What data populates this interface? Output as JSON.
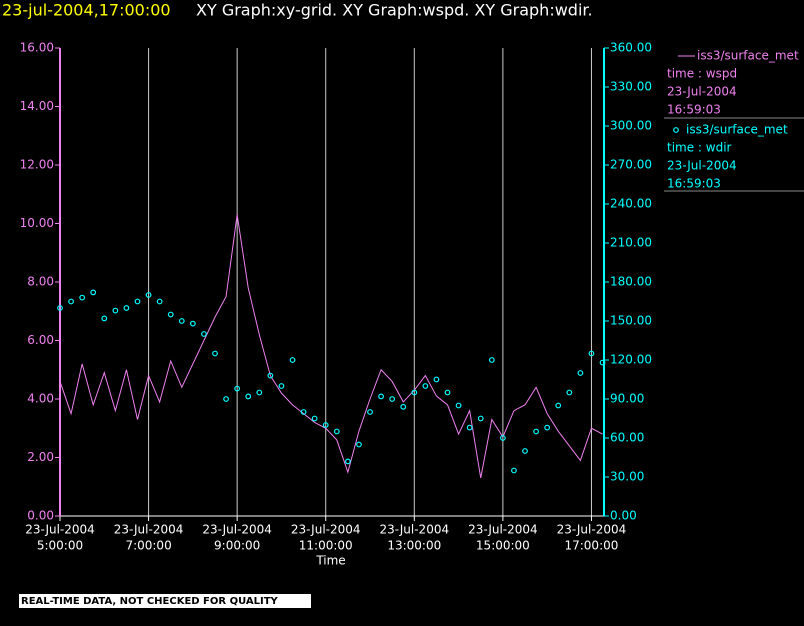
{
  "chart_data": {
    "type": "line",
    "title": [
      "23-jul-2004,17:00:00",
      "XY Graph:xy-grid.  XY Graph:wspd.  XY Graph:wdir."
    ],
    "xlabel": "Time",
    "footer": "REAL-TIME DATA, NOT CHECKED FOR QUALITY",
    "grid": true,
    "x": [
      "2004-07-23T05:00",
      "2004-07-23T05:15",
      "2004-07-23T05:30",
      "2004-07-23T05:45",
      "2004-07-23T06:00",
      "2004-07-23T06:15",
      "2004-07-23T06:30",
      "2004-07-23T06:45",
      "2004-07-23T07:00",
      "2004-07-23T07:15",
      "2004-07-23T07:30",
      "2004-07-23T07:45",
      "2004-07-23T08:00",
      "2004-07-23T08:15",
      "2004-07-23T08:30",
      "2004-07-23T08:45",
      "2004-07-23T09:00",
      "2004-07-23T09:15",
      "2004-07-23T09:30",
      "2004-07-23T09:45",
      "2004-07-23T10:00",
      "2004-07-23T10:15",
      "2004-07-23T10:30",
      "2004-07-23T10:45",
      "2004-07-23T11:00",
      "2004-07-23T11:15",
      "2004-07-23T11:30",
      "2004-07-23T11:45",
      "2004-07-23T12:00",
      "2004-07-23T12:15",
      "2004-07-23T12:30",
      "2004-07-23T12:45",
      "2004-07-23T13:00",
      "2004-07-23T13:15",
      "2004-07-23T13:30",
      "2004-07-23T13:45",
      "2004-07-23T14:00",
      "2004-07-23T14:15",
      "2004-07-23T14:30",
      "2004-07-23T14:45",
      "2004-07-23T15:00",
      "2004-07-23T15:15",
      "2004-07-23T15:30",
      "2004-07-23T15:45",
      "2004-07-23T16:00",
      "2004-07-23T16:15",
      "2004-07-23T16:30",
      "2004-07-23T16:45",
      "2004-07-23T17:00",
      "2004-07-23T17:15"
    ],
    "xlim": [
      "2004-07-23T05:00",
      "2004-07-23T17:17"
    ],
    "xticks": [
      {
        "value": "2004-07-23T05:00",
        "label": [
          "23-Jul-2004",
          "5:00:00"
        ]
      },
      {
        "value": "2004-07-23T07:00",
        "label": [
          "23-Jul-2004",
          "7:00:00"
        ]
      },
      {
        "value": "2004-07-23T09:00",
        "label": [
          "23-Jul-2004",
          "9:00:00"
        ]
      },
      {
        "value": "2004-07-23T11:00",
        "label": [
          "23-Jul-2004",
          "11:00:00"
        ]
      },
      {
        "value": "2004-07-23T13:00",
        "label": [
          "23-Jul-2004",
          "13:00:00"
        ]
      },
      {
        "value": "2004-07-23T15:00",
        "label": [
          "23-Jul-2004",
          "15:00:00"
        ]
      },
      {
        "value": "2004-07-23T17:00",
        "label": [
          "23-Jul-2004",
          "17:00:00"
        ]
      }
    ],
    "ylim": [
      0,
      16
    ],
    "yticks": [
      {
        "value": 0,
        "label": "0.00"
      },
      {
        "value": 2,
        "label": "2.00"
      },
      {
        "value": 4,
        "label": "4.00"
      },
      {
        "value": 6,
        "label": "6.00"
      },
      {
        "value": 8,
        "label": "8.00"
      },
      {
        "value": 10,
        "label": "10.00"
      },
      {
        "value": 12,
        "label": "12.00"
      },
      {
        "value": 14,
        "label": "14.00"
      },
      {
        "value": 16,
        "label": "16.00"
      }
    ],
    "y2lim": [
      0,
      360
    ],
    "y2ticks": [
      {
        "value": 0,
        "label": "0.00"
      },
      {
        "value": 30,
        "label": "30.00"
      },
      {
        "value": 60,
        "label": "60.00"
      },
      {
        "value": 90,
        "label": "90.00"
      },
      {
        "value": 120,
        "label": "120.00"
      },
      {
        "value": 150,
        "label": "150.00"
      },
      {
        "value": 180,
        "label": "180.00"
      },
      {
        "value": 210,
        "label": "210.00"
      },
      {
        "value": 240,
        "label": "240.00"
      },
      {
        "value": 270,
        "label": "270.00"
      },
      {
        "value": 300,
        "label": "300.00"
      },
      {
        "value": 330,
        "label": "330.00"
      },
      {
        "value": 360,
        "label": "360.00"
      }
    ],
    "series": [
      {
        "name": "iss3/surface_met",
        "legend_lines": [
          "time : wspd",
          "23-Jul-2004",
          "16:59:03"
        ],
        "color": "#ee82ee",
        "style": "line",
        "values": [
          4.6,
          3.5,
          5.2,
          3.8,
          4.9,
          3.6,
          5.0,
          3.3,
          4.8,
          3.9,
          5.3,
          4.4,
          5.2,
          6.0,
          6.8,
          7.5,
          10.3,
          7.8,
          6.2,
          4.8,
          4.2,
          3.8,
          3.5,
          3.2,
          3.0,
          2.6,
          1.5,
          2.9,
          4.0,
          5.0,
          4.6,
          3.9,
          4.3,
          4.8,
          4.1,
          3.8,
          2.8,
          3.6,
          1.3,
          3.3,
          2.7,
          3.6,
          3.8,
          4.4,
          3.5,
          2.9,
          2.4,
          1.9,
          3.0,
          2.8
        ]
      },
      {
        "name": "iss3/surface_met",
        "legend_lines": [
          "time : wdir",
          "23-Jul-2004",
          "16:59:03"
        ],
        "color": "#00ffff",
        "style": "marker",
        "axis": "y2",
        "values": [
          160,
          165,
          168,
          172,
          152,
          158,
          160,
          165,
          170,
          165,
          155,
          150,
          148,
          140,
          125,
          90,
          98,
          92,
          95,
          108,
          100,
          120,
          80,
          75,
          70,
          65,
          42,
          55,
          80,
          92,
          90,
          84,
          95,
          100,
          105,
          95,
          85,
          68,
          75,
          120,
          60,
          35,
          50,
          65,
          68,
          85,
          95,
          110,
          125,
          118
        ]
      }
    ]
  }
}
